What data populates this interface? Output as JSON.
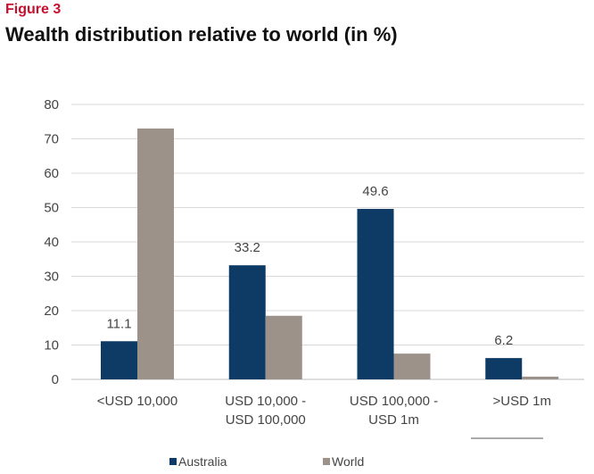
{
  "figure_label": "Figure 3",
  "title": "Wealth distribution relative to world (in %)",
  "colors": {
    "Australia": "#0d3b66",
    "World": "#9c928a",
    "grid": "#d9d9d9",
    "axis": "#bdbdbd"
  },
  "chart_data": {
    "type": "bar",
    "title": "Wealth distribution relative to world (in %)",
    "xlabel": "",
    "ylabel": "",
    "ylim": [
      0,
      80
    ],
    "yticks": [
      0,
      10,
      20,
      30,
      40,
      50,
      60,
      70,
      80
    ],
    "grid": true,
    "legend_position": "bottom",
    "categories": [
      [
        "<USD 10,000"
      ],
      [
        "USD 10,000 -",
        "USD 100,000"
      ],
      [
        "USD 100,000 -",
        "USD 1m"
      ],
      [
        ">USD 1m"
      ]
    ],
    "series": [
      {
        "name": "Australia",
        "values": [
          11.1,
          33.2,
          49.6,
          6.2
        ],
        "labels": [
          "11.1",
          "33.2",
          "49.6",
          "6.2"
        ]
      },
      {
        "name": "World",
        "values": [
          73,
          18.5,
          7.5,
          0.8
        ]
      }
    ]
  }
}
